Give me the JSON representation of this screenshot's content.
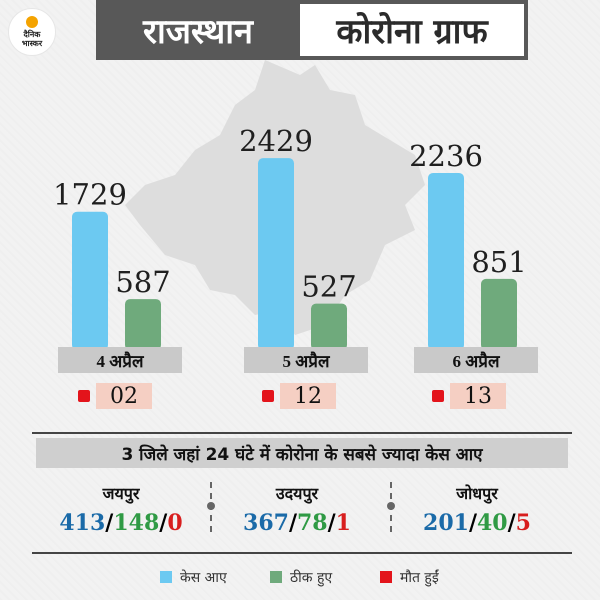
{
  "logo": {
    "line1": "दैनिक",
    "line2": "भास्कर"
  },
  "header": {
    "title_left": "राजस्थान",
    "title_right": "कोरोना ग्राफ"
  },
  "colors": {
    "cases": "#6cc9f1",
    "recovered": "#6faa7c",
    "deaths": "#e3141b"
  },
  "chart_data": {
    "type": "bar",
    "categories": [
      "4 अप्रैल",
      "5 अप्रैल",
      "6 अप्रैल"
    ],
    "series": [
      {
        "name": "केस आए",
        "values": [
          1729,
          2429,
          2236
        ]
      },
      {
        "name": "ठीक हुए",
        "values": [
          587,
          527,
          851
        ]
      }
    ],
    "deaths": [
      "02",
      "12",
      "13"
    ],
    "legend_position": "bottom",
    "grid": false,
    "xlabel": "",
    "ylabel": ""
  },
  "districts": {
    "heading": "3 जिले जहां 24 घंटे में कोरोना के सबसे ज्यादा केस आए",
    "items": [
      {
        "name": "जयपुर",
        "cases": "413",
        "recovered": "148",
        "deaths": "0"
      },
      {
        "name": "उदयपुर",
        "cases": "367",
        "recovered": "78",
        "deaths": "1"
      },
      {
        "name": "जोधपुर",
        "cases": "201",
        "recovered": "40",
        "deaths": "5"
      }
    ],
    "separator": "/"
  },
  "legend": [
    {
      "label": "केस आए"
    },
    {
      "label": "ठीक हुए"
    },
    {
      "label": "मौत हुईं"
    }
  ]
}
